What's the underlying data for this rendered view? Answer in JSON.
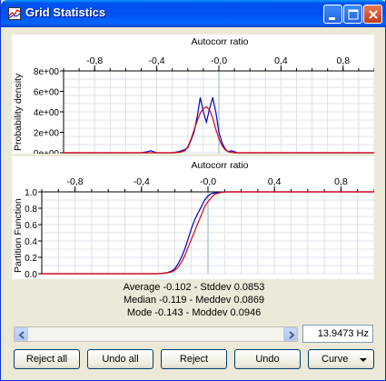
{
  "window": {
    "title": "Grid Statistics"
  },
  "colors": {
    "series_blue": "#0000cc",
    "series_red": "#dd0000",
    "grid": "#c8d0d8"
  },
  "top_plot": {
    "xlabel": "Autocorr ratio",
    "ylabel": "Probability density",
    "x_ticks": [
      "-0,8",
      "-0,4",
      "-0,0",
      "0,4",
      "0,8"
    ],
    "y_ticks": [
      "8e+00",
      "6e+00",
      "4e+00",
      "2e+00",
      "0e+00"
    ]
  },
  "bottom_plot": {
    "xlabel": "Autocorr ratio",
    "ylabel": "Partition Function",
    "x_ticks": [
      "-0,8",
      "-0,4",
      "-0,0",
      "0,4",
      "0,8"
    ],
    "y_ticks": [
      "1.0",
      "0.8",
      "0.6",
      "0.4",
      "0.2",
      "0.0"
    ]
  },
  "chart_data": [
    {
      "type": "line",
      "xlabel": "Autocorr ratio",
      "ylabel": "Probability density",
      "xlim": [
        -1.0,
        1.0
      ],
      "ylim": [
        0,
        8
      ],
      "x_ticks": [
        -0.8,
        -0.4,
        0.0,
        0.4,
        0.8
      ],
      "y_ticks": [
        0,
        2,
        4,
        6,
        8
      ],
      "grid": true,
      "series": [
        {
          "color": "#0000cc",
          "x": [
            -1.0,
            -0.5,
            -0.46,
            -0.44,
            -0.42,
            -0.4,
            -0.3,
            -0.26,
            -0.22,
            -0.2,
            -0.18,
            -0.16,
            -0.14,
            -0.12,
            -0.1,
            -0.08,
            -0.06,
            -0.04,
            -0.02,
            0.0,
            0.02,
            0.04,
            0.06,
            0.08,
            0.12,
            1.0
          ],
          "y": [
            0,
            0,
            0.1,
            0.2,
            0.1,
            0,
            0,
            0.1,
            0.3,
            0.5,
            1.2,
            2.0,
            3.5,
            5.4,
            4.0,
            3.0,
            4.3,
            5.4,
            4.0,
            2.0,
            1.0,
            0.4,
            0.1,
            0.2,
            0,
            0
          ]
        },
        {
          "color": "#dd0000",
          "x": [
            -1.0,
            -0.3,
            -0.25,
            -0.22,
            -0.2,
            -0.18,
            -0.16,
            -0.14,
            -0.12,
            -0.1,
            -0.08,
            -0.06,
            -0.04,
            -0.02,
            0.0,
            0.02,
            0.04,
            0.06,
            0.1,
            1.0
          ],
          "y": [
            0,
            0,
            0.05,
            0.2,
            0.6,
            1.3,
            2.2,
            3.1,
            3.9,
            4.3,
            4.5,
            4.2,
            3.4,
            2.3,
            1.4,
            0.7,
            0.3,
            0.1,
            0,
            0
          ]
        }
      ]
    },
    {
      "type": "line",
      "xlabel": "Autocorr ratio",
      "ylabel": "Partition Function",
      "xlim": [
        -1.0,
        1.0
      ],
      "ylim": [
        0,
        1.0
      ],
      "x_ticks": [
        -0.8,
        -0.4,
        0.0,
        0.4,
        0.8
      ],
      "y_ticks": [
        0,
        0.2,
        0.4,
        0.6,
        0.8,
        1.0
      ],
      "grid": true,
      "series": [
        {
          "color": "#0000cc",
          "x": [
            -1.0,
            -0.3,
            -0.25,
            -0.22,
            -0.2,
            -0.18,
            -0.16,
            -0.14,
            -0.12,
            -0.1,
            -0.08,
            -0.06,
            -0.04,
            -0.02,
            0.0,
            0.02,
            0.06,
            0.1,
            1.0
          ],
          "y": [
            0,
            0,
            0.01,
            0.03,
            0.06,
            0.12,
            0.2,
            0.3,
            0.42,
            0.55,
            0.66,
            0.74,
            0.82,
            0.9,
            0.95,
            0.98,
            0.995,
            1.0,
            1.0
          ]
        },
        {
          "color": "#dd0000",
          "x": [
            -1.0,
            -0.3,
            -0.25,
            -0.22,
            -0.2,
            -0.18,
            -0.16,
            -0.14,
            -0.12,
            -0.1,
            -0.08,
            -0.06,
            -0.04,
            -0.02,
            0.0,
            0.02,
            0.04,
            0.08,
            0.12,
            1.0
          ],
          "y": [
            0,
            0,
            0.01,
            0.02,
            0.04,
            0.08,
            0.14,
            0.22,
            0.32,
            0.42,
            0.52,
            0.62,
            0.72,
            0.82,
            0.88,
            0.93,
            0.97,
            0.995,
            1.0,
            1.0
          ]
        }
      ]
    }
  ],
  "stats": {
    "line1": "Average -0.102  - Stddev 0.0853",
    "line2": "Median -0.119  - Meddev 0.0869",
    "line3": "Mode -0.143  - Moddev 0.0946"
  },
  "frequency": {
    "value": "13.9473 Hz"
  },
  "buttons": {
    "reject_all": "Reject all",
    "undo_all": "Undo all",
    "reject": "Reject",
    "undo": "Undo",
    "curve": "Curve"
  }
}
